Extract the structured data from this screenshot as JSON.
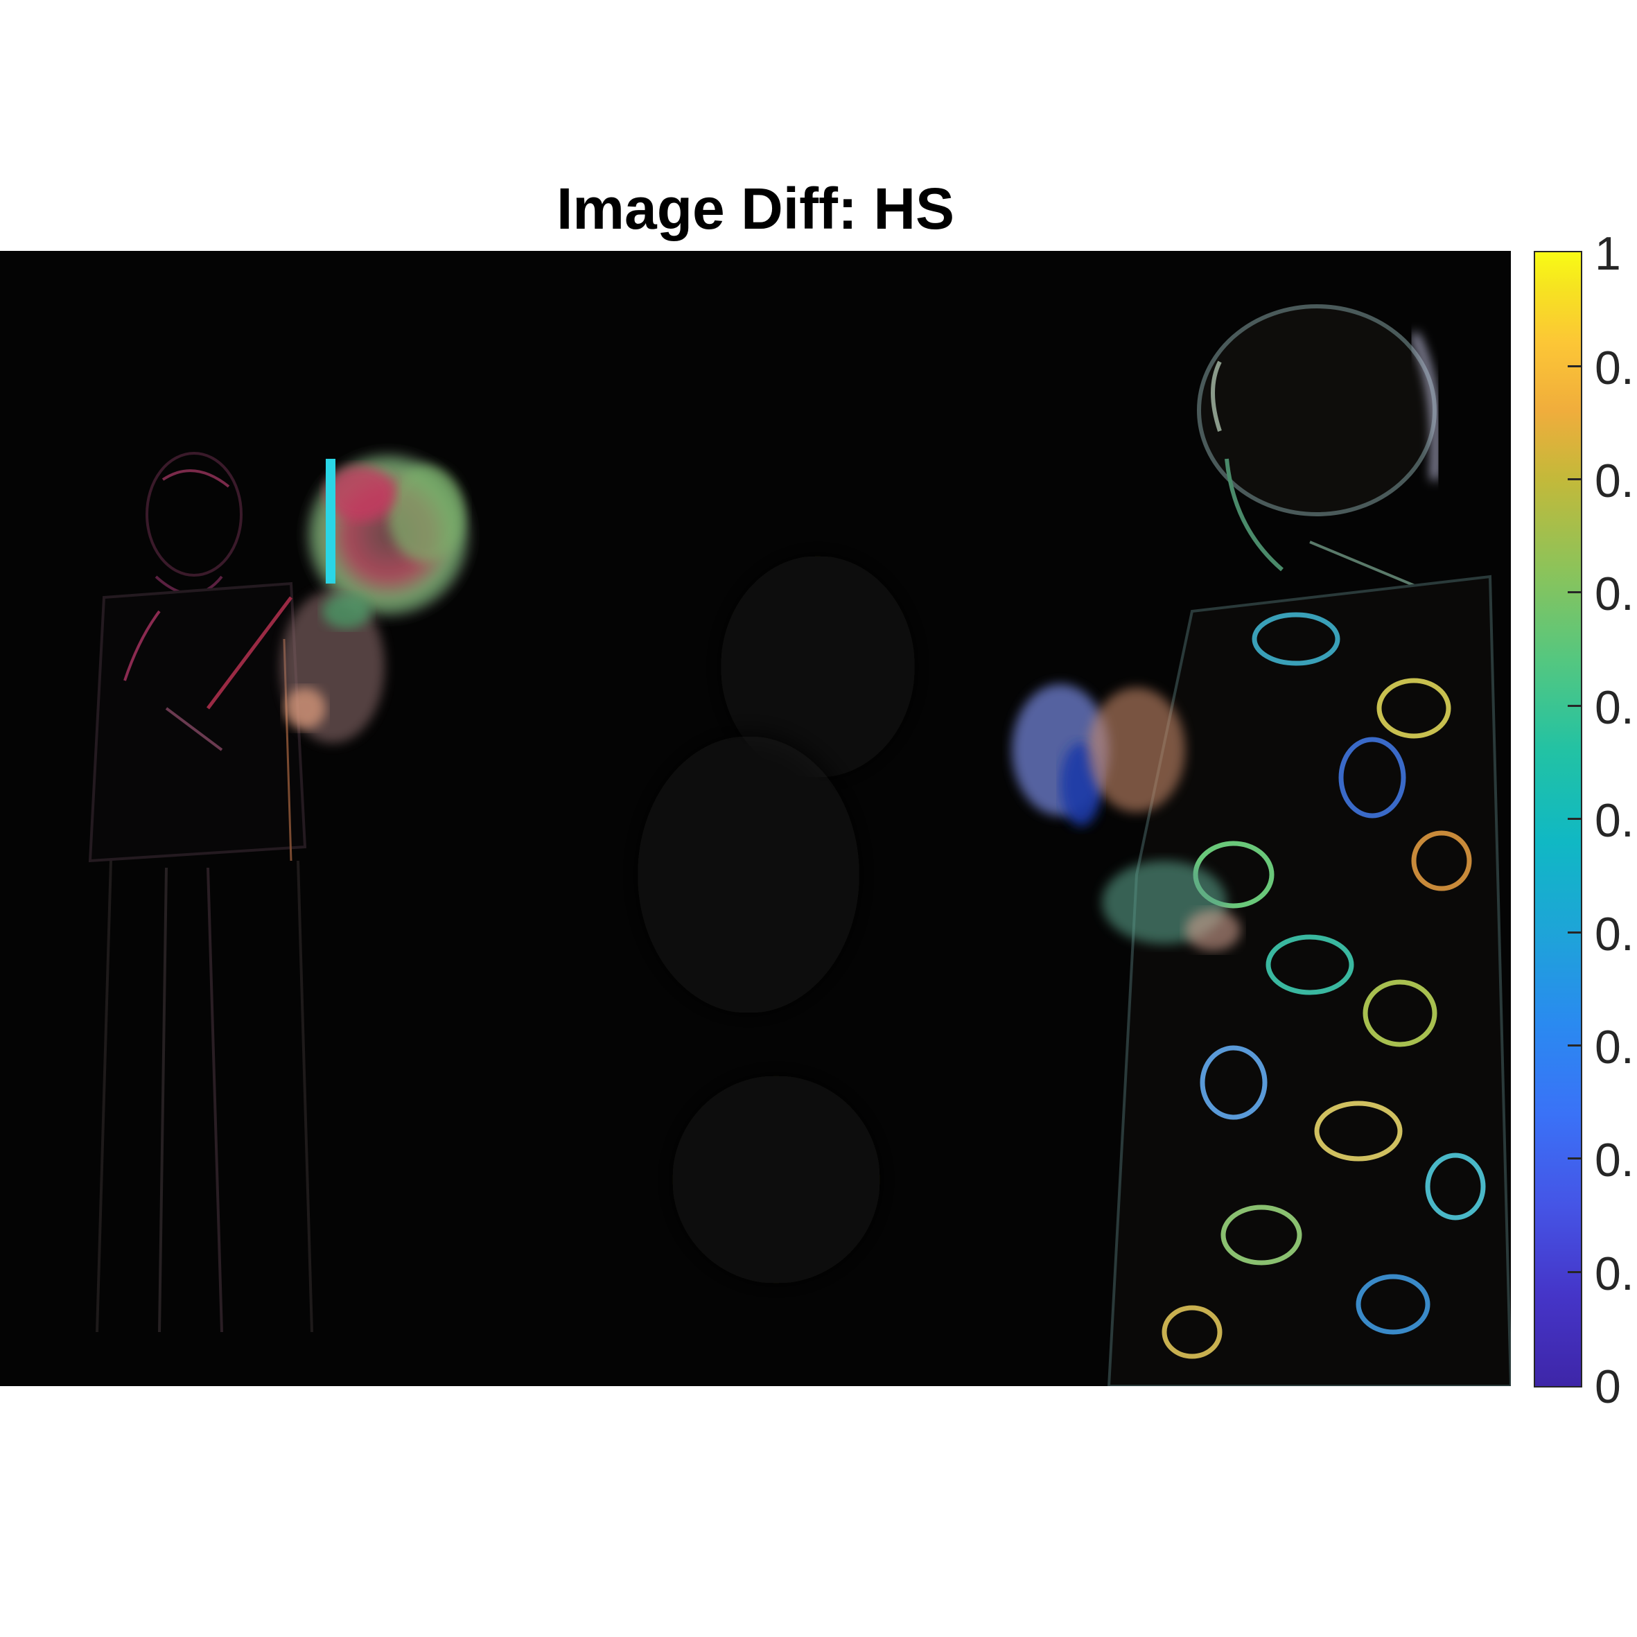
{
  "figure": {
    "title": "Image Diff: HS"
  },
  "image": {
    "description_icon": "difference-image-two-people-icon",
    "background_color": "#040404"
  },
  "colorbar": {
    "colormap": "parula",
    "min": 0,
    "max": 1,
    "tick_labels": [
      "1",
      "0.",
      "0.",
      "0.",
      "0.",
      "0.",
      "0.",
      "0.",
      "0.",
      "0.",
      "0"
    ]
  }
}
